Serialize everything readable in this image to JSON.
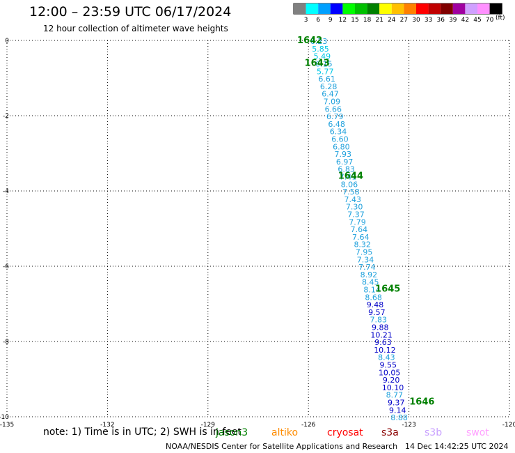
{
  "header": {
    "title": "12:00 – 23:59 UTC 06/17/2024",
    "subtitle": "12 hour collection of altimeter wave heights"
  },
  "legend": {
    "unit": "(ft)",
    "bins": [
      {
        "label": "3",
        "color": "#808080"
      },
      {
        "label": "6",
        "color": "#00ffff"
      },
      {
        "label": "9",
        "color": "#00a0ff"
      },
      {
        "label": "12",
        "color": "#0000ff"
      },
      {
        "label": "15",
        "color": "#00ff00"
      },
      {
        "label": "18",
        "color": "#00c000"
      },
      {
        "label": "21",
        "color": "#008000"
      },
      {
        "label": "24",
        "color": "#ffff00"
      },
      {
        "label": "27",
        "color": "#ffc000"
      },
      {
        "label": "30",
        "color": "#ff8000"
      },
      {
        "label": "33",
        "color": "#ff0000"
      },
      {
        "label": "36",
        "color": "#c00000"
      },
      {
        "label": "39",
        "color": "#800000"
      },
      {
        "label": "42",
        "color": "#a000a0"
      },
      {
        "label": "45",
        "color": "#d0a0ff"
      },
      {
        "label": "70",
        "color": "#ff90ff"
      },
      {
        "label": "",
        "color": "#000000"
      }
    ]
  },
  "footer": {
    "note": "note: 1) Time is in UTC; 2) SWH is in feet",
    "missions": [
      {
        "label": "jason3",
        "color": "#008000"
      },
      {
        "label": "altiko",
        "color": "#ff8c00"
      },
      {
        "label": "cryosat",
        "color": "#ff0000"
      },
      {
        "label": "s3a",
        "color": "#8b0000"
      },
      {
        "label": "s3b",
        "color": "#c8a0ff"
      },
      {
        "label": "swot",
        "color": "#ffa0ff"
      }
    ],
    "credit": "NOAA/NESDIS Center for Satellite Applications and Research",
    "timestamp": "14 Dec 14:42:25 UTC 2024"
  },
  "chart_data": {
    "type": "scatter",
    "xlim": [
      -135,
      -120
    ],
    "ylim": [
      -10,
      0
    ],
    "x_ticks": [
      -135,
      -132,
      -129,
      -126,
      -123,
      -120
    ],
    "y_ticks": [
      0,
      -2,
      -4,
      -6,
      -8,
      -10
    ],
    "grid": true,
    "colors": {
      "lt6": "#00c8e6",
      "lt9": "#1ea0dc",
      "lt12": "#0000c8",
      "time": "#008000"
    },
    "points": [
      {
        "lon": -125.69,
        "lat": -0.02,
        "swh": 6.23
      },
      {
        "lon": -125.64,
        "lat": -0.22,
        "swh": 5.85
      },
      {
        "lon": -125.59,
        "lat": -0.42,
        "swh": 5.49
      },
      {
        "lon": -125.54,
        "lat": -0.62,
        "swh": 6.15
      },
      {
        "lon": -125.5,
        "lat": -0.82,
        "swh": 5.77
      },
      {
        "lon": -125.45,
        "lat": -1.02,
        "swh": 6.61
      },
      {
        "lon": -125.4,
        "lat": -1.22,
        "swh": 6.28
      },
      {
        "lon": -125.35,
        "lat": -1.42,
        "swh": 6.47
      },
      {
        "lon": -125.3,
        "lat": -1.62,
        "swh": 7.09
      },
      {
        "lon": -125.26,
        "lat": -1.82,
        "swh": 6.66
      },
      {
        "lon": -125.21,
        "lat": -2.02,
        "swh": 6.79
      },
      {
        "lon": -125.16,
        "lat": -2.22,
        "swh": 6.48
      },
      {
        "lon": -125.11,
        "lat": -2.42,
        "swh": 6.34
      },
      {
        "lon": -125.06,
        "lat": -2.62,
        "swh": 6.6
      },
      {
        "lon": -125.02,
        "lat": -2.82,
        "swh": 6.8
      },
      {
        "lon": -124.97,
        "lat": -3.02,
        "swh": 7.93
      },
      {
        "lon": -124.92,
        "lat": -3.22,
        "swh": 6.97
      },
      {
        "lon": -124.87,
        "lat": -3.42,
        "swh": 6.83
      },
      {
        "lon": -124.82,
        "lat": -3.62,
        "swh": 7.41
      },
      {
        "lon": -124.78,
        "lat": -3.82,
        "swh": 8.06
      },
      {
        "lon": -124.73,
        "lat": -4.02,
        "swh": 7.58
      },
      {
        "lon": -124.68,
        "lat": -4.22,
        "swh": 7.43
      },
      {
        "lon": -124.63,
        "lat": -4.42,
        "swh": 7.3
      },
      {
        "lon": -124.58,
        "lat": -4.62,
        "swh": 7.37
      },
      {
        "lon": -124.54,
        "lat": -4.82,
        "swh": 7.79
      },
      {
        "lon": -124.49,
        "lat": -5.02,
        "swh": 7.64
      },
      {
        "lon": -124.44,
        "lat": -5.22,
        "swh": 7.64
      },
      {
        "lon": -124.39,
        "lat": -5.42,
        "swh": 8.32
      },
      {
        "lon": -124.34,
        "lat": -5.62,
        "swh": 7.95
      },
      {
        "lon": -124.3,
        "lat": -5.82,
        "swh": 7.34
      },
      {
        "lon": -124.25,
        "lat": -6.02,
        "swh": 7.74
      },
      {
        "lon": -124.2,
        "lat": -6.22,
        "swh": 8.92
      },
      {
        "lon": -124.15,
        "lat": -6.42,
        "swh": 8.45
      },
      {
        "lon": -124.1,
        "lat": -6.62,
        "swh": 8.14
      },
      {
        "lon": -124.06,
        "lat": -6.82,
        "swh": 8.68
      },
      {
        "lon": -124.01,
        "lat": -7.02,
        "swh": 9.48
      },
      {
        "lon": -123.96,
        "lat": -7.22,
        "swh": 9.57
      },
      {
        "lon": -123.91,
        "lat": -7.42,
        "swh": 7.83
      },
      {
        "lon": -123.86,
        "lat": -7.62,
        "swh": 9.88
      },
      {
        "lon": -123.82,
        "lat": -7.82,
        "swh": 10.21
      },
      {
        "lon": -123.77,
        "lat": -8.02,
        "swh": 9.63
      },
      {
        "lon": -123.72,
        "lat": -8.22,
        "swh": 10.12
      },
      {
        "lon": -123.67,
        "lat": -8.42,
        "swh": 8.43
      },
      {
        "lon": -123.62,
        "lat": -8.62,
        "swh": 9.55
      },
      {
        "lon": -123.58,
        "lat": -8.82,
        "swh": 10.05
      },
      {
        "lon": -123.53,
        "lat": -9.02,
        "swh": 9.2
      },
      {
        "lon": -123.48,
        "lat": -9.22,
        "swh": 10.1
      },
      {
        "lon": -123.43,
        "lat": -9.42,
        "swh": 8.77
      },
      {
        "lon": -123.38,
        "lat": -9.62,
        "swh": 9.37
      },
      {
        "lon": -123.34,
        "lat": -9.82,
        "swh": 9.14
      },
      {
        "lon": -123.29,
        "lat": -10.02,
        "swh": 8.88
      }
    ],
    "time_labels": [
      {
        "text": "1642",
        "lon": -125.96,
        "lat": 0.0
      },
      {
        "text": "1643",
        "lon": -125.74,
        "lat": -0.6
      },
      {
        "text": "1644",
        "lon": -124.74,
        "lat": -3.6
      },
      {
        "text": "1645",
        "lon": -123.63,
        "lat": -6.6
      },
      {
        "text": "1646",
        "lon": -122.61,
        "lat": -9.6
      }
    ]
  }
}
